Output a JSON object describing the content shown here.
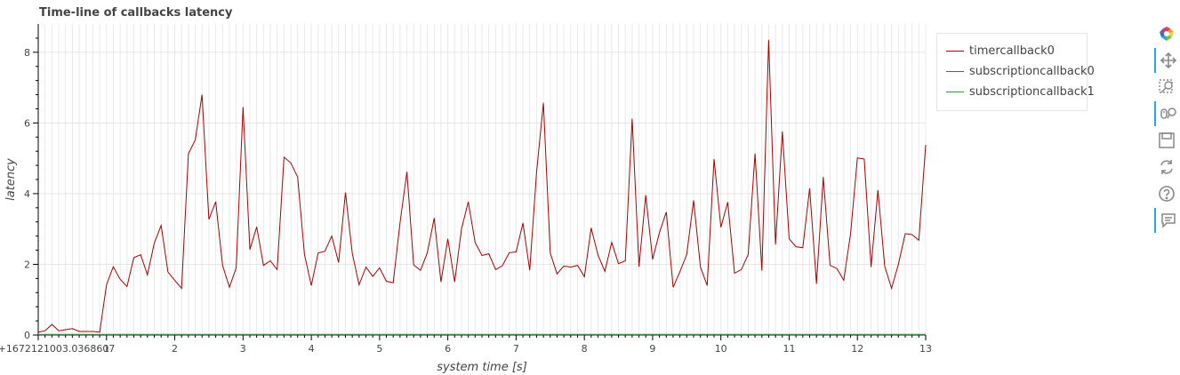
{
  "chart_data": {
    "type": "line",
    "title": "Time-line of callbacks latency",
    "xlabel": "system time [s]",
    "ylabel": "latency",
    "x_offset_label": "0+1672121003.0368607",
    "xlim": [
      0,
      13
    ],
    "ylim": [
      0,
      8.8
    ],
    "x_ticks": [
      1,
      2,
      3,
      4,
      5,
      6,
      7,
      8,
      9,
      10,
      11,
      12,
      13
    ],
    "y_ticks": [
      0,
      2,
      4,
      6,
      8
    ],
    "grid": true,
    "legend_position": "top-right",
    "series": [
      {
        "name": "timercallback0",
        "color": "#aa0000",
        "x": [
          0.0,
          0.1,
          0.2,
          0.3,
          0.4,
          0.5,
          0.6,
          0.7,
          0.8,
          0.9,
          1.0,
          1.1,
          1.2,
          1.3,
          1.4,
          1.5,
          1.6,
          1.7,
          1.8,
          1.9,
          2.0,
          2.1,
          2.2,
          2.3,
          2.4,
          2.5,
          2.6,
          2.7,
          2.8,
          2.9,
          3.0,
          3.1,
          3.2,
          3.3,
          3.4,
          3.5,
          3.6,
          3.7,
          3.8,
          3.9,
          4.0,
          4.1,
          4.2,
          4.3,
          4.4,
          4.5,
          4.6,
          4.7,
          4.8,
          4.9,
          5.0,
          5.1,
          5.2,
          5.3,
          5.4,
          5.5,
          5.6,
          5.7,
          5.8,
          5.9,
          6.0,
          6.1,
          6.2,
          6.3,
          6.4,
          6.5,
          6.6,
          6.7,
          6.8,
          6.9,
          7.0,
          7.1,
          7.2,
          7.3,
          7.4,
          7.5,
          7.6,
          7.7,
          7.8,
          7.9,
          8.0,
          8.1,
          8.2,
          8.3,
          8.4,
          8.5,
          8.6,
          8.7,
          8.8,
          8.9,
          9.0,
          9.1,
          9.2,
          9.3,
          9.4,
          9.5,
          9.6,
          9.7,
          9.8,
          9.9,
          10.0,
          10.1,
          10.2,
          10.3,
          10.4,
          10.5,
          10.6,
          10.7,
          10.8,
          10.9,
          11.0,
          11.1,
          11.2,
          11.3,
          11.4,
          11.5,
          11.6,
          11.7,
          11.8,
          11.9,
          12.0,
          12.1,
          12.2,
          12.3,
          12.4,
          12.5,
          12.6,
          12.7,
          12.8,
          12.9,
          13.0
        ],
        "y": [
          0.08,
          0.12,
          0.3,
          0.12,
          0.15,
          0.18,
          0.1,
          0.1,
          0.1,
          0.08,
          1.42,
          1.93,
          1.58,
          1.37,
          2.19,
          2.27,
          1.7,
          2.6,
          3.1,
          1.78,
          1.55,
          1.32,
          5.13,
          5.52,
          6.8,
          3.27,
          3.77,
          1.97,
          1.35,
          1.9,
          6.45,
          2.42,
          3.06,
          1.97,
          2.1,
          1.85,
          5.03,
          4.87,
          4.47,
          2.28,
          1.4,
          2.32,
          2.37,
          2.8,
          2.05,
          4.03,
          2.32,
          1.42,
          1.92,
          1.66,
          1.9,
          1.52,
          1.48,
          3.18,
          4.62,
          1.98,
          1.83,
          2.33,
          3.31,
          1.5,
          2.72,
          1.5,
          3.0,
          3.77,
          2.62,
          2.25,
          2.3,
          1.85,
          1.96,
          2.33,
          2.35,
          3.17,
          1.83,
          4.6,
          6.57,
          2.32,
          1.73,
          1.95,
          1.92,
          1.97,
          1.65,
          3.03,
          2.26,
          1.8,
          2.62,
          2.02,
          2.1,
          6.12,
          1.93,
          3.96,
          2.14,
          2.9,
          3.48,
          1.35,
          1.79,
          2.28,
          3.81,
          1.92,
          1.4,
          4.98,
          3.05,
          3.76,
          1.75,
          1.85,
          2.28,
          5.14,
          1.82,
          8.35,
          2.56,
          5.76,
          2.72,
          2.5,
          2.47,
          4.15,
          1.45,
          4.47,
          1.97,
          1.88,
          1.55,
          2.88,
          5.01,
          4.98,
          1.92,
          4.1,
          1.95,
          1.32,
          2.0,
          2.87,
          2.84,
          2.68,
          5.38
        ]
      },
      {
        "name": "subscriptioncallback0",
        "color": "#7b3ac6",
        "x": [
          0,
          13
        ],
        "y": [
          0.01,
          0.01
        ]
      },
      {
        "name": "subscriptioncallback1",
        "color": "#2ca02c",
        "x": [
          0,
          13
        ],
        "y": [
          0.02,
          0.02
        ]
      }
    ]
  },
  "toolbar": {
    "items": [
      {
        "name": "bokeh-logo-icon",
        "active": false
      },
      {
        "name": "pan-icon",
        "active": true
      },
      {
        "name": "box-zoom-icon",
        "active": false
      },
      {
        "name": "wheel-zoom-icon",
        "active": true
      },
      {
        "name": "save-icon",
        "active": false
      },
      {
        "name": "reset-icon",
        "active": false
      },
      {
        "name": "help-icon",
        "active": false
      },
      {
        "name": "hover-icon",
        "active": true
      }
    ],
    "accent_color": "#26aae1"
  }
}
